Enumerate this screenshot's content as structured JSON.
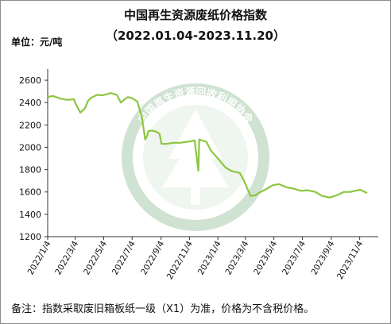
{
  "chart_data": {
    "type": "line",
    "title": "中国再生资源废纸价格指数",
    "subtitle": "（2022.01.04-2023.11.20）",
    "unit_label": "单位：元/吨",
    "x_tick_labels": [
      "2022/1/4",
      "2022/3/4",
      "2022/5/4",
      "2022/7/4",
      "2022/9/4",
      "2022/11/4",
      "2023/1/4",
      "2023/3/4",
      "2023/5/4",
      "2023/7/4",
      "2023/9/4",
      "2023/11/4"
    ],
    "y_ticks": [
      1200,
      1400,
      1600,
      1800,
      2000,
      2200,
      2400,
      2600
    ],
    "ylim": [
      1200,
      2700
    ],
    "grid": false,
    "line_color": "#8cc63f",
    "watermark_text": "中国再生资源回收利用协会",
    "watermark_color": "#2e7d32",
    "series": [
      {
        "x": [
          "2022/1/4",
          "2022/1/15",
          "2022/2/1",
          "2022/2/15",
          "2022/3/1",
          "2022/3/5",
          "2022/3/15",
          "2022/3/25",
          "2022/4/1",
          "2022/4/10",
          "2022/4/20",
          "2022/5/1",
          "2022/5/20",
          "2022/6/1",
          "2022/6/10",
          "2022/6/18",
          "2022/6/25",
          "2022/7/4",
          "2022/7/15",
          "2022/7/25",
          "2022/8/1",
          "2022/8/5",
          "2022/8/8",
          "2022/8/15",
          "2022/8/25",
          "2022/9/1",
          "2022/9/5",
          "2022/9/15",
          "2022/10/1",
          "2022/10/15",
          "2022/11/1",
          "2022/11/15",
          "2022/11/23",
          "2022/11/25",
          "2022/12/1",
          "2022/12/10",
          "2022/12/20",
          "2023/1/4",
          "2023/1/20",
          "2023/2/1",
          "2023/2/10",
          "2023/2/20",
          "2023/3/1",
          "2023/3/8",
          "2023/3/15",
          "2023/3/25",
          "2023/4/1",
          "2023/4/15",
          "2023/5/1",
          "2023/5/15",
          "2023/6/1",
          "2023/6/15",
          "2023/7/1",
          "2023/7/15",
          "2023/8/1",
          "2023/8/15",
          "2023/9/1",
          "2023/9/15",
          "2023/10/1",
          "2023/10/15",
          "2023/10/25",
          "2023/11/5",
          "2023/11/20"
        ],
        "y": [
          2450,
          2460,
          2435,
          2425,
          2430,
          2390,
          2310,
          2350,
          2420,
          2450,
          2470,
          2465,
          2485,
          2470,
          2400,
          2430,
          2450,
          2440,
          2410,
          2270,
          2070,
          2100,
          2145,
          2150,
          2140,
          2120,
          2030,
          2030,
          2040,
          2040,
          2050,
          2060,
          1790,
          2070,
          2060,
          2050,
          1970,
          1900,
          1820,
          1790,
          1780,
          1770,
          1700,
          1630,
          1565,
          1570,
          1590,
          1620,
          1660,
          1670,
          1640,
          1630,
          1610,
          1615,
          1600,
          1565,
          1550,
          1570,
          1600,
          1600,
          1610,
          1620,
          1590
        ]
      }
    ]
  },
  "note": "备注：指数采取废旧箱板纸一级（X1）为准，价格为不含税价格。"
}
